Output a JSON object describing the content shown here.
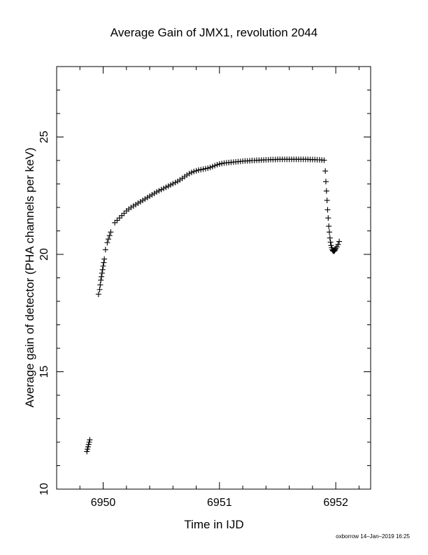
{
  "chart_data": {
    "type": "scatter",
    "title": "Average Gain of JMX1, revolution 2044",
    "xlabel": "Time in IJD",
    "ylabel": "Average gain of detector (PHA channels per keV)",
    "xlim": [
      6949.6,
      6952.3
    ],
    "ylim": [
      10,
      28
    ],
    "x_ticks": [
      "6950",
      "6951",
      "6952"
    ],
    "y_ticks": [
      "10",
      "15",
      "20",
      "25"
    ],
    "grid": false,
    "legend": "none",
    "marker": "plus",
    "color": "#000000",
    "footer": "oxborrow 14–Jan–2019 16:25",
    "series": [
      {
        "points": [
          [
            6949.86,
            11.6
          ],
          [
            6949.865,
            11.7
          ],
          [
            6949.87,
            11.8
          ],
          [
            6949.875,
            11.9
          ],
          [
            6949.88,
            12.0
          ],
          [
            6949.885,
            12.1
          ],
          [
            6949.96,
            18.3
          ],
          [
            6949.97,
            18.5
          ],
          [
            6949.975,
            18.7
          ],
          [
            6949.98,
            18.9
          ],
          [
            6949.985,
            19.05
          ],
          [
            6949.99,
            19.2
          ],
          [
            6949.995,
            19.35
          ],
          [
            6950.0,
            19.5
          ],
          [
            6950.005,
            19.65
          ],
          [
            6950.01,
            19.8
          ],
          [
            6950.02,
            20.2
          ],
          [
            6950.035,
            20.5
          ],
          [
            6950.045,
            20.65
          ],
          [
            6950.055,
            20.8
          ],
          [
            6950.065,
            20.95
          ],
          [
            6950.1,
            21.35
          ],
          [
            6950.12,
            21.45
          ],
          [
            6950.14,
            21.55
          ],
          [
            6950.16,
            21.65
          ],
          [
            6950.18,
            21.75
          ],
          [
            6950.2,
            21.85
          ],
          [
            6950.22,
            21.93
          ],
          [
            6950.24,
            22.0
          ],
          [
            6950.26,
            22.06
          ],
          [
            6950.28,
            22.12
          ],
          [
            6950.3,
            22.18
          ],
          [
            6950.32,
            22.24
          ],
          [
            6950.34,
            22.3
          ],
          [
            6950.36,
            22.36
          ],
          [
            6950.38,
            22.42
          ],
          [
            6950.4,
            22.48
          ],
          [
            6950.42,
            22.54
          ],
          [
            6950.44,
            22.6
          ],
          [
            6950.46,
            22.66
          ],
          [
            6950.48,
            22.71
          ],
          [
            6950.5,
            22.76
          ],
          [
            6950.52,
            22.81
          ],
          [
            6950.54,
            22.86
          ],
          [
            6950.56,
            22.91
          ],
          [
            6950.58,
            22.96
          ],
          [
            6950.6,
            23.01
          ],
          [
            6950.62,
            23.06
          ],
          [
            6950.64,
            23.11
          ],
          [
            6950.66,
            23.17
          ],
          [
            6950.68,
            23.24
          ],
          [
            6950.7,
            23.31
          ],
          [
            6950.72,
            23.38
          ],
          [
            6950.74,
            23.44
          ],
          [
            6950.76,
            23.49
          ],
          [
            6950.78,
            23.53
          ],
          [
            6950.8,
            23.56
          ],
          [
            6950.82,
            23.59
          ],
          [
            6950.84,
            23.61
          ],
          [
            6950.86,
            23.63
          ],
          [
            6950.88,
            23.65
          ],
          [
            6950.9,
            23.67
          ],
          [
            6950.92,
            23.7
          ],
          [
            6950.94,
            23.74
          ],
          [
            6950.96,
            23.78
          ],
          [
            6950.98,
            23.82
          ],
          [
            6951.0,
            23.85
          ],
          [
            6951.02,
            23.87
          ],
          [
            6951.04,
            23.89
          ],
          [
            6951.06,
            23.9
          ],
          [
            6951.08,
            23.91
          ],
          [
            6951.1,
            23.92
          ],
          [
            6951.12,
            23.93
          ],
          [
            6951.14,
            23.94
          ],
          [
            6951.16,
            23.95
          ],
          [
            6951.18,
            23.96
          ],
          [
            6951.2,
            23.97
          ],
          [
            6951.22,
            23.98
          ],
          [
            6951.24,
            23.98
          ],
          [
            6951.26,
            23.99
          ],
          [
            6951.28,
            24.0
          ],
          [
            6951.3,
            24.0
          ],
          [
            6951.32,
            24.01
          ],
          [
            6951.34,
            24.01
          ],
          [
            6951.36,
            24.02
          ],
          [
            6951.38,
            24.02
          ],
          [
            6951.4,
            24.03
          ],
          [
            6951.42,
            24.03
          ],
          [
            6951.44,
            24.04
          ],
          [
            6951.46,
            24.04
          ],
          [
            6951.48,
            24.04
          ],
          [
            6951.5,
            24.05
          ],
          [
            6951.52,
            24.05
          ],
          [
            6951.54,
            24.05
          ],
          [
            6951.56,
            24.05
          ],
          [
            6951.58,
            24.05
          ],
          [
            6951.6,
            24.05
          ],
          [
            6951.62,
            24.05
          ],
          [
            6951.64,
            24.05
          ],
          [
            6951.66,
            24.05
          ],
          [
            6951.68,
            24.05
          ],
          [
            6951.7,
            24.05
          ],
          [
            6951.72,
            24.05
          ],
          [
            6951.74,
            24.05
          ],
          [
            6951.76,
            24.05
          ],
          [
            6951.78,
            24.04
          ],
          [
            6951.8,
            24.04
          ],
          [
            6951.82,
            24.04
          ],
          [
            6951.84,
            24.03
          ],
          [
            6951.86,
            24.03
          ],
          [
            6951.88,
            24.02
          ],
          [
            6951.9,
            24.01
          ],
          [
            6951.91,
            23.55
          ],
          [
            6951.915,
            23.1
          ],
          [
            6951.92,
            22.7
          ],
          [
            6951.925,
            22.3
          ],
          [
            6951.93,
            21.9
          ],
          [
            6951.935,
            21.55
          ],
          [
            6951.94,
            21.2
          ],
          [
            6951.945,
            20.95
          ],
          [
            6951.95,
            20.7
          ],
          [
            6951.955,
            20.52
          ],
          [
            6951.96,
            20.38
          ],
          [
            6951.965,
            20.28
          ],
          [
            6951.97,
            20.2
          ],
          [
            6951.975,
            20.16
          ],
          [
            6951.98,
            20.14
          ],
          [
            6951.985,
            20.14
          ],
          [
            6951.99,
            20.16
          ],
          [
            6951.995,
            20.2
          ],
          [
            6952.0,
            20.25
          ],
          [
            6952.01,
            20.32
          ],
          [
            6952.02,
            20.42
          ],
          [
            6952.03,
            20.55
          ]
        ]
      }
    ]
  }
}
